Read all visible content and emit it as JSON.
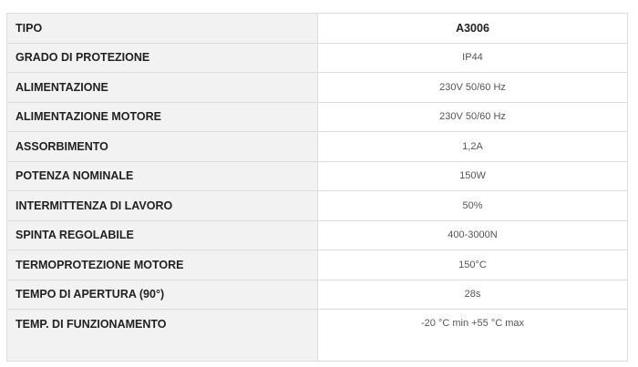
{
  "specs": [
    {
      "label": "TIPO",
      "value": "A3006"
    },
    {
      "label": "GRADO DI PROTEZIONE",
      "value": "IP44"
    },
    {
      "label": "ALIMENTAZIONE",
      "value": "230V 50/60 Hz"
    },
    {
      "label": "ALIMENTAZIONE MOTORE",
      "value": "230V 50/60 Hz"
    },
    {
      "label": "ASSORBIMENTO",
      "value": "1,2A"
    },
    {
      "label": "POTENZA NOMINALE",
      "value": "150W"
    },
    {
      "label": "INTERMITTENZA DI LAVORO",
      "value": "50%"
    },
    {
      "label": "SPINTA REGOLABILE",
      "value": "400-3000N"
    },
    {
      "label": "TERMOPROTEZIONE MOTORE",
      "value": "150°C"
    },
    {
      "label": "TEMPO DI APERTURA (90°)",
      "value": "28s"
    },
    {
      "label": "TEMP. DI FUNZIONAMENTO",
      "value": "-20 °C min +55 °C max"
    }
  ]
}
